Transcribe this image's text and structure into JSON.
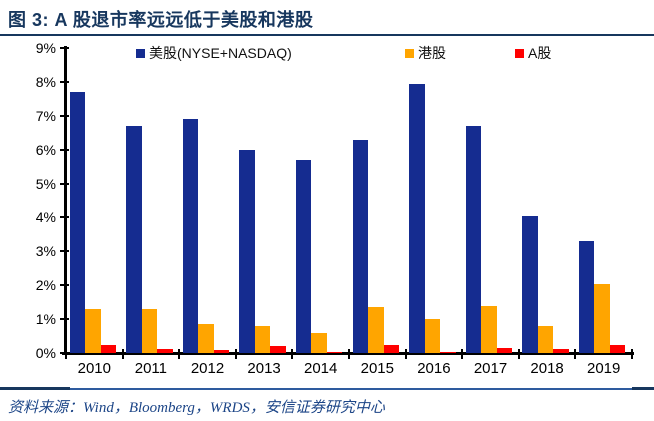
{
  "title": "图 3: A 股退市率远远低于美股和港股",
  "source_note": "资料来源：Wind，Bloomberg，WRDS，安信证券研究中心",
  "colors": {
    "title": "#17375e",
    "source": "#1c4587",
    "rule_top": "#17375e",
    "rule_bottom": "#2e5b9e",
    "rule_bottom_dark": "#17375e",
    "axis": "#000000"
  },
  "y_tick_labels": [
    "0%",
    "1%",
    "2%",
    "3%",
    "4%",
    "5%",
    "6%",
    "7%",
    "8%",
    "9%"
  ],
  "chart_data": {
    "type": "bar",
    "categories": [
      "2010",
      "2011",
      "2012",
      "2013",
      "2014",
      "2015",
      "2016",
      "2017",
      "2018",
      "2019"
    ],
    "series": [
      {
        "key": "us",
        "name": "美股(NYSE+NASDAQ)",
        "color": "#152c90",
        "values": [
          7.7,
          6.7,
          6.9,
          6.0,
          5.7,
          6.3,
          7.95,
          6.7,
          4.05,
          3.3
        ]
      },
      {
        "key": "hk",
        "name": "港股",
        "color": "#ffa500",
        "values": [
          1.3,
          1.3,
          0.85,
          0.8,
          0.6,
          1.35,
          1.0,
          1.4,
          0.8,
          2.05
        ]
      },
      {
        "key": "a",
        "name": "A股",
        "color": "#ff0000",
        "values": [
          0.25,
          0.12,
          0.1,
          0.22,
          0.03,
          0.25,
          0.04,
          0.15,
          0.12,
          0.25
        ]
      }
    ],
    "title": "图 3: A 股退市率远远低于美股和港股",
    "xlabel": "",
    "ylabel": "",
    "ylim": [
      0,
      9
    ],
    "ytick_step": 1,
    "ytick_format": "percent",
    "grid": false,
    "legend_position": "top-inside-horizontal"
  }
}
